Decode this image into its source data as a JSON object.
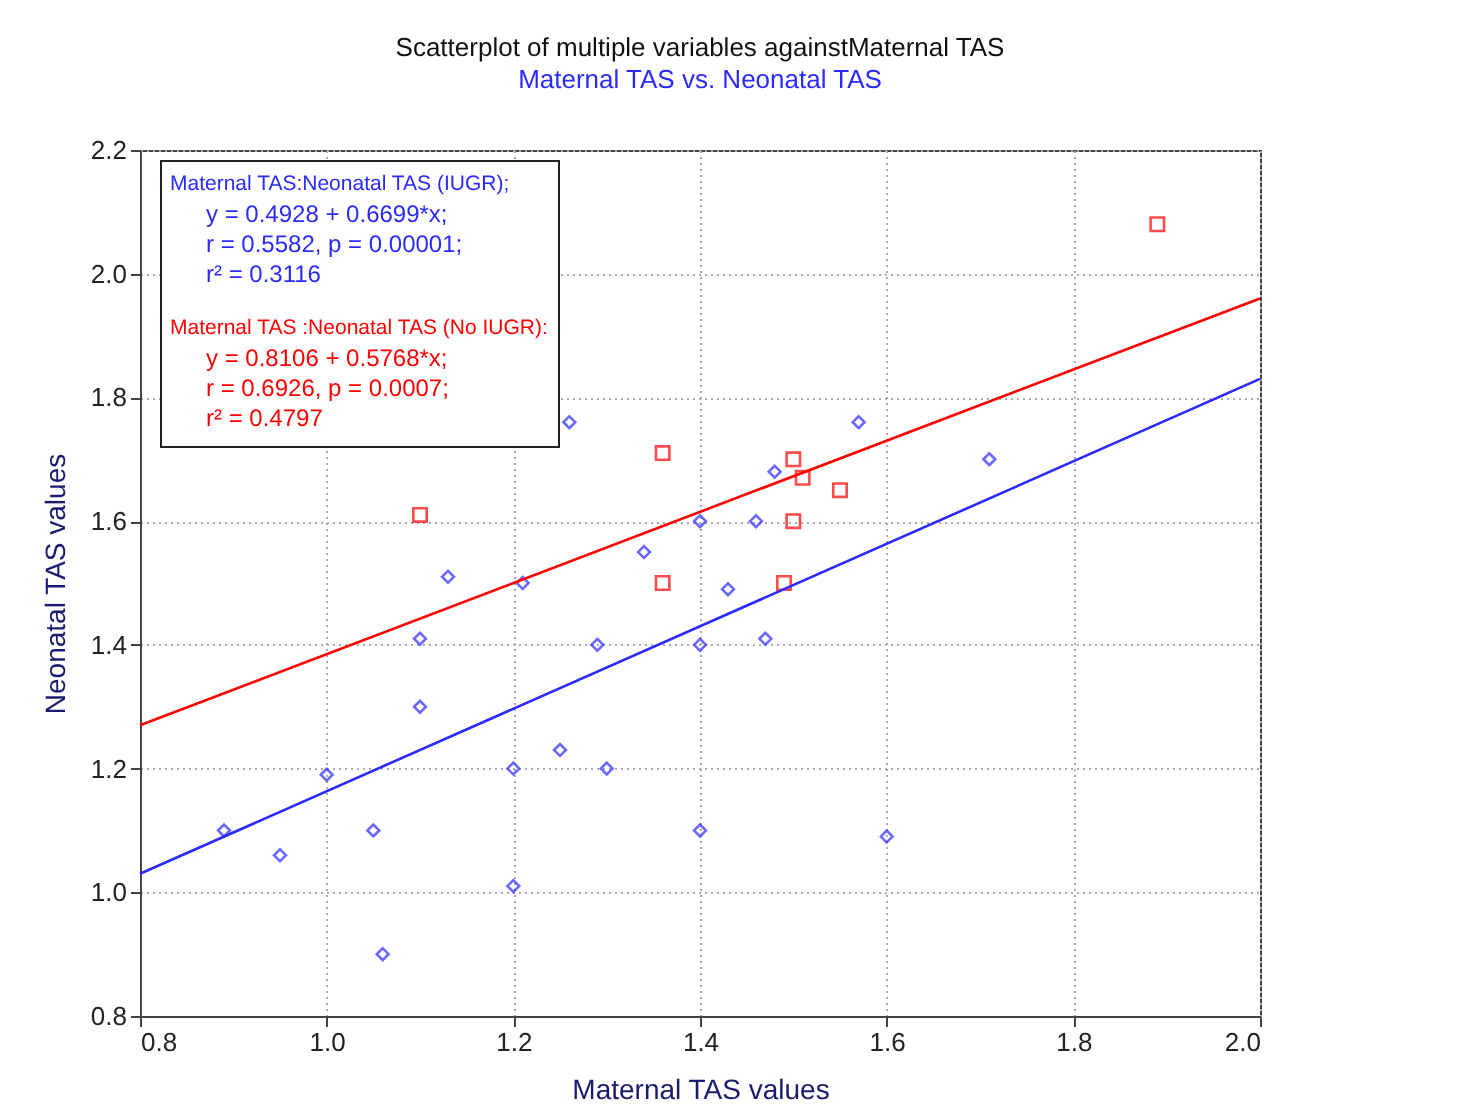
{
  "chart_data": {
    "type": "scatter",
    "title": "Scatterplot of multiple variables againstMaternal TAS",
    "subtitle": "Maternal TAS vs. Neonatal TAS",
    "xlabel": "Maternal TAS values",
    "ylabel": "Neonatal TAS values",
    "xlim": [
      0.8,
      2.0
    ],
    "ylim": [
      0.8,
      2.2
    ],
    "xticks": [
      {
        "value": 0.8,
        "label": "0.8"
      },
      {
        "value": 1.0,
        "label": "1.0"
      },
      {
        "value": 1.2,
        "label": "1.2"
      },
      {
        "value": 1.4,
        "label": "1.4"
      },
      {
        "value": 1.6,
        "label": "1.6"
      },
      {
        "value": 1.8,
        "label": "1.8"
      },
      {
        "value": 2.0,
        "label": "2.0"
      }
    ],
    "yticks": [
      {
        "value": 0.8,
        "label": "0.8"
      },
      {
        "value": 1.0,
        "label": "1.0"
      },
      {
        "value": 1.2,
        "label": "1.2"
      },
      {
        "value": 1.4,
        "label": "1.4"
      },
      {
        "value": 1.6,
        "label": "1.6"
      },
      {
        "value": 1.8,
        "label": "1.8"
      },
      {
        "value": 2.0,
        "label": "2.0"
      },
      {
        "value": 2.2,
        "label": "2.2"
      }
    ],
    "grid": true,
    "series": [
      {
        "marker": "diamond",
        "color": "#2a2aff",
        "x": [
          0.89,
          0.95,
          1.0,
          1.05,
          1.06,
          1.1,
          1.1,
          1.13,
          1.2,
          1.2,
          1.21,
          1.25,
          1.26,
          1.29,
          1.3,
          1.34,
          1.4,
          1.4,
          1.4,
          1.43,
          1.46,
          1.47,
          1.48,
          1.57,
          1.6,
          1.71
        ],
        "values": [
          1.1,
          1.06,
          1.19,
          1.1,
          0.9,
          1.41,
          1.3,
          1.51,
          1.2,
          1.01,
          1.5,
          1.23,
          1.76,
          1.4,
          1.2,
          1.55,
          1.6,
          1.4,
          1.1,
          1.49,
          1.6,
          1.41,
          1.68,
          1.76,
          1.09,
          1.7
        ]
      },
      {
        "marker": "square",
        "color": "#ff0000",
        "x": [
          1.1,
          1.36,
          1.36,
          1.49,
          1.5,
          1.5,
          1.51,
          1.55,
          1.89
        ],
        "values": [
          1.61,
          1.71,
          1.5,
          1.5,
          1.7,
          1.6,
          1.67,
          1.65,
          2.08
        ]
      },
      {
        "type": "line",
        "marker": "none",
        "color": "#2a2aff",
        "x": [
          0.8,
          2.0
        ],
        "values": [
          1.03,
          1.83
        ]
      },
      {
        "type": "line",
        "marker": "none",
        "color": "#ff0000",
        "x": [
          0.8,
          2.0
        ],
        "values": [
          1.27,
          1.96
        ]
      }
    ],
    "annotations": [
      "Maternal TAS:Neonatal TAS (IUGR);",
      "y = 0.4928 + 0.6699*x;",
      "r = 0.5582, p = 0.00001;",
      "r² = 0.3116",
      "Maternal TAS :Neonatal TAS (No IUGR):",
      "y = 0.8106 + 0.5768*x;",
      "r = 0.6926, p = 0.0007;",
      "r² = 0.4797"
    ]
  }
}
